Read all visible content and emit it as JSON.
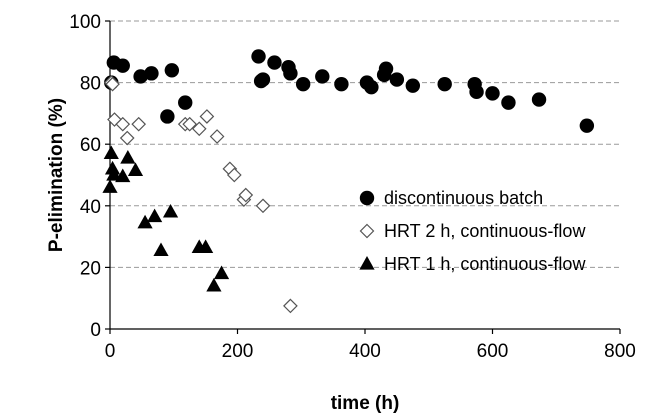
{
  "chart_data": {
    "type": "scatter",
    "title": "",
    "xlabel": "time (h)",
    "ylabel": "P-elimination (%)",
    "xlim": [
      0,
      800
    ],
    "ylim": [
      0,
      100
    ],
    "xticks": [
      0,
      200,
      400,
      600,
      800
    ],
    "yticks": [
      0,
      20,
      40,
      60,
      80,
      100
    ],
    "grid": "horizontal dashed",
    "legend_position": "right",
    "series": [
      {
        "name": "discontinuous batch",
        "marker": "filled-circle",
        "color": "#000000",
        "x": [
          2,
          6,
          20,
          48,
          65,
          90,
          97,
          118,
          233,
          237,
          240,
          258,
          280,
          283,
          303,
          333,
          363,
          403,
          410,
          430,
          433,
          450,
          475,
          525,
          572,
          575,
          600,
          625,
          673,
          748
        ],
        "y": [
          80,
          86.5,
          85.5,
          82,
          83,
          69,
          84,
          73.5,
          88.5,
          80.5,
          81,
          86.5,
          85,
          83,
          79.5,
          82,
          79.5,
          80,
          78.5,
          82.5,
          84.5,
          81,
          79,
          79.5,
          79.5,
          77,
          76.5,
          73.5,
          74.5,
          66
        ]
      },
      {
        "name": "HRT 2 h, continuous-flow",
        "marker": "open-diamond",
        "color": "#000000",
        "x": [
          2,
          4,
          7,
          20,
          27,
          45,
          118,
          125,
          140,
          152,
          168,
          188,
          195,
          210,
          213,
          240,
          283
        ],
        "y": [
          80,
          79.5,
          68,
          66.5,
          62,
          66.5,
          66.5,
          66.5,
          65,
          69,
          62.5,
          52,
          50,
          42,
          43.5,
          40,
          7.5
        ]
      },
      {
        "name": "HRT 1 h, continuous-flow",
        "marker": "filled-triangle",
        "color": "#000000",
        "x": [
          0,
          2,
          4,
          6,
          20,
          28,
          40,
          55,
          70,
          80,
          95,
          140,
          150,
          163,
          175
        ],
        "y": [
          46,
          57,
          52,
          50,
          49.5,
          55.5,
          51.5,
          34.5,
          36.5,
          25.5,
          38,
          26.5,
          26.5,
          14,
          18
        ]
      }
    ]
  }
}
